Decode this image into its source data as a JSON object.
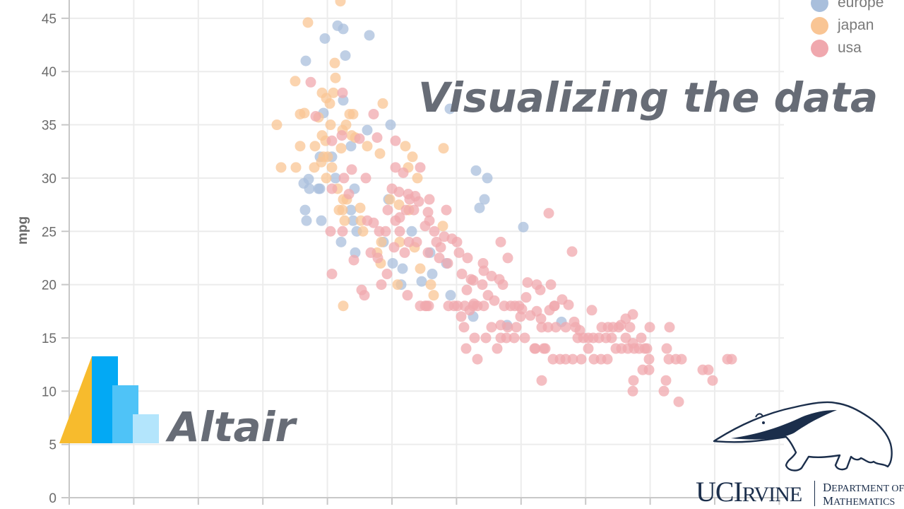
{
  "headline": "Visualizing the data",
  "altair": {
    "wordmark": "Altair",
    "logo_colors": {
      "triangle": "#f7bb2d",
      "bar1": "#03a9f4",
      "bar2": "#4fc3f7",
      "bar3": "#b3e5fc"
    }
  },
  "institution": {
    "wordmark_big_1": "UCI",
    "wordmark_small": "RVINE",
    "dept_line1_cap": "D",
    "dept_line1_rest": "EPARTMENT OF",
    "dept_line2_cap": "M",
    "dept_line2_rest": "ATHEMATICS",
    "color": "#1b2e4b"
  },
  "legend": {
    "items": [
      {
        "label": "europe",
        "color": "#a9bfdc"
      },
      {
        "label": "japan",
        "color": "#f9c594"
      },
      {
        "label": "usa",
        "color": "#f0a8ae"
      }
    ]
  },
  "chart_data": {
    "type": "scatter",
    "title": "",
    "xlabel": "",
    "ylabel": "mpg",
    "ylim": [
      0,
      45
    ],
    "yticks": [
      0,
      5,
      10,
      15,
      20,
      25,
      30,
      35,
      40,
      45
    ],
    "x_grid_count": 11,
    "grid": true,
    "legend_position": "top-right",
    "series": [
      {
        "name": "europe",
        "color": "#a9bfdc",
        "points": [
          [
            433,
            41
          ],
          [
            460,
            43.1
          ],
          [
            478,
            44.3
          ],
          [
            486,
            44
          ],
          [
            523,
            43.4
          ],
          [
            489,
            41.5
          ],
          [
            486,
            37.3
          ],
          [
            458,
            36.1
          ],
          [
            553,
            35
          ],
          [
            520,
            34.5
          ],
          [
            497,
            33
          ],
          [
            470,
            32
          ],
          [
            453,
            32
          ],
          [
            437,
            29.9
          ],
          [
            430,
            29.5
          ],
          [
            438,
            29
          ],
          [
            451,
            29
          ],
          [
            453,
            29
          ],
          [
            432,
            27
          ],
          [
            434,
            26
          ],
          [
            455,
            26
          ],
          [
            475,
            30
          ],
          [
            502,
            29
          ],
          [
            497,
            27
          ],
          [
            500,
            26
          ],
          [
            505,
            25
          ],
          [
            503,
            23
          ],
          [
            550,
            28
          ],
          [
            583,
            25
          ],
          [
            609,
            23
          ],
          [
            556,
            22
          ],
          [
            570,
            21.5
          ],
          [
            568,
            20
          ],
          [
            612,
            21
          ],
          [
            632,
            22
          ],
          [
            638,
            19
          ],
          [
            674,
            30.7
          ],
          [
            690,
            30
          ],
          [
            686,
            28
          ],
          [
            679,
            27.2
          ],
          [
            741,
            25.4
          ],
          [
            670,
            17
          ],
          [
            718,
            16.2
          ],
          [
            795,
            16.5
          ],
          [
            543,
            24
          ],
          [
            483,
            24
          ],
          [
            597,
            20.3
          ],
          [
            637,
            36.5
          ]
        ]
      },
      {
        "name": "japan",
        "color": "#f9c594",
        "points": [
          [
            436,
            44.6
          ],
          [
            482,
            46.6
          ],
          [
            474,
            40.8
          ],
          [
            418,
            39.1
          ],
          [
            475,
            39.4
          ],
          [
            456,
            38
          ],
          [
            462,
            37.5
          ],
          [
            467,
            37
          ],
          [
            472,
            38
          ],
          [
            542,
            37
          ],
          [
            392,
            35
          ],
          [
            425,
            36
          ],
          [
            431,
            36.1
          ],
          [
            451,
            35.7
          ],
          [
            468,
            35
          ],
          [
            495,
            36
          ],
          [
            500,
            36
          ],
          [
            485,
            34.5
          ],
          [
            490,
            35
          ],
          [
            498,
            34
          ],
          [
            503,
            33.8
          ],
          [
            425,
            33
          ],
          [
            446,
            33
          ],
          [
            456,
            34
          ],
          [
            461,
            33.5
          ],
          [
            464,
            32
          ],
          [
            483,
            32.8
          ],
          [
            520,
            33
          ],
          [
            538,
            32.3
          ],
          [
            398,
            31
          ],
          [
            419,
            31
          ],
          [
            445,
            31
          ],
          [
            455,
            31.5
          ],
          [
            458,
            32
          ],
          [
            462,
            30
          ],
          [
            470,
            31
          ],
          [
            478,
            29
          ],
          [
            486,
            28
          ],
          [
            491,
            28
          ],
          [
            485,
            27
          ],
          [
            480,
            27
          ],
          [
            488,
            26
          ],
          [
            510,
            27.2
          ],
          [
            511,
            26
          ],
          [
            514,
            25
          ],
          [
            574,
            33
          ],
          [
            584,
            32
          ],
          [
            578,
            31
          ],
          [
            591,
            30
          ],
          [
            628,
            32.8
          ],
          [
            552,
            28
          ],
          [
            565,
            27.5
          ],
          [
            579,
            27
          ],
          [
            627,
            25.5
          ],
          [
            540,
            24
          ],
          [
            534,
            23
          ],
          [
            539,
            22
          ],
          [
            566,
            24
          ],
          [
            587,
            23.5
          ],
          [
            595,
            21.5
          ],
          [
            610,
            20
          ],
          [
            614,
            19
          ],
          [
            486,
            18
          ],
          [
            563,
            20
          ]
        ]
      },
      {
        "name": "usa",
        "color": "#f0a8ae",
        "points": [
          [
            440,
            39
          ],
          [
            485,
            38
          ],
          [
            447,
            35.8
          ],
          [
            529,
            36
          ],
          [
            470,
            33.5
          ],
          [
            484,
            34
          ],
          [
            509,
            33.7
          ],
          [
            534,
            33.8
          ],
          [
            560,
            33.5
          ],
          [
            560,
            31
          ],
          [
            571,
            30.5
          ],
          [
            595,
            31
          ],
          [
            470,
            29
          ],
          [
            498,
            30.8
          ],
          [
            518,
            30
          ],
          [
            487,
            30
          ],
          [
            494,
            28.5
          ],
          [
            555,
            29
          ],
          [
            565,
            28.7
          ],
          [
            578,
            28.5
          ],
          [
            580,
            28
          ],
          [
            588,
            28.3
          ],
          [
            593,
            27.8
          ],
          [
            608,
            28
          ],
          [
            606,
            26.8
          ],
          [
            632,
            27
          ],
          [
            608,
            26
          ],
          [
            602,
            25.5
          ],
          [
            615,
            25
          ],
          [
            549,
            27
          ],
          [
            546,
            25
          ],
          [
            560,
            26
          ],
          [
            566,
            26.3
          ],
          [
            575,
            27
          ],
          [
            586,
            27
          ],
          [
            520,
            26
          ],
          [
            529,
            25.8
          ],
          [
            537,
            25
          ],
          [
            566,
            25
          ],
          [
            579,
            24
          ],
          [
            558,
            23.5
          ],
          [
            573,
            23
          ],
          [
            590,
            24
          ],
          [
            606,
            23
          ],
          [
            618,
            24
          ],
          [
            629,
            24.5
          ],
          [
            624,
            23.5
          ],
          [
            622,
            22.5
          ],
          [
            634,
            22
          ],
          [
            640,
            24.3
          ],
          [
            650,
            23
          ],
          [
            662,
            22.5
          ],
          [
            647,
            24
          ],
          [
            468,
            25
          ],
          [
            485,
            25
          ],
          [
            470,
            21
          ],
          [
            501,
            22.3
          ],
          [
            525,
            23
          ],
          [
            535,
            22.5
          ],
          [
            548,
            21
          ],
          [
            540,
            20
          ],
          [
            516,
            19
          ],
          [
            512,
            19.5
          ],
          [
            577,
            19
          ],
          [
            602,
            18
          ],
          [
            607,
            18
          ],
          [
            635,
            18
          ],
          [
            643,
            18
          ],
          [
            648,
            18
          ],
          [
            654,
            21
          ],
          [
            661,
            19.5
          ],
          [
            667,
            20.5
          ],
          [
            684,
            22
          ],
          [
            685,
            21.3
          ],
          [
            709,
            24
          ],
          [
            719,
            22.5
          ],
          [
            696,
            20.8
          ],
          [
            707,
            20.5
          ],
          [
            712,
            20
          ],
          [
            683,
            20
          ],
          [
            691,
            19
          ],
          [
            700,
            18.5
          ],
          [
            671,
            18.2
          ],
          [
            685,
            18
          ],
          [
            714,
            18
          ],
          [
            723,
            18
          ],
          [
            729,
            18
          ],
          [
            735,
            18
          ],
          [
            739,
            17.7
          ],
          [
            745,
            18.8
          ],
          [
            747,
            20.2
          ],
          [
            760,
            20
          ],
          [
            765,
            19.5
          ],
          [
            731,
            16
          ],
          [
            737,
            17
          ],
          [
            751,
            17.1
          ],
          [
            760,
            17.5
          ],
          [
            766,
            16.8
          ],
          [
            778,
            17.6
          ],
          [
            785,
            18
          ],
          [
            796,
            18.6
          ],
          [
            767,
            16
          ],
          [
            776,
            16
          ],
          [
            787,
            16
          ],
          [
            801,
            16
          ],
          [
            813,
            16.5
          ],
          [
            821,
            15.7
          ],
          [
            838,
            17.6
          ],
          [
            852,
            16
          ],
          [
            861,
            16
          ],
          [
            868,
            16
          ],
          [
            876,
            16
          ],
          [
            892,
            16
          ],
          [
            896,
            17.2
          ],
          [
            920,
            16
          ],
          [
            886,
            16.8
          ],
          [
            879,
            16.2
          ],
          [
            886,
            15
          ],
          [
            896,
            14.5
          ],
          [
            908,
            15
          ],
          [
            916,
            14
          ],
          [
            919,
            13
          ],
          [
            860,
            13
          ],
          [
            851,
            13
          ],
          [
            841,
            13
          ],
          [
            833,
            14
          ],
          [
            823,
            13
          ],
          [
            811,
            13
          ],
          [
            801,
            13
          ],
          [
            793,
            13
          ],
          [
            783,
            13
          ],
          [
            772,
            14
          ],
          [
            758,
            14
          ],
          [
            743,
            15
          ],
          [
            728,
            15
          ],
          [
            717,
            15
          ],
          [
            709,
            15
          ],
          [
            704,
            14
          ],
          [
            688,
            15
          ],
          [
            672,
            15
          ],
          [
            660,
            14
          ],
          [
            676,
            13
          ],
          [
            696,
            16
          ],
          [
            709,
            16.2
          ],
          [
            653,
            17
          ],
          [
            657,
            16
          ],
          [
            665,
            17.6
          ],
          [
            670,
            20.4
          ],
          [
            670,
            18
          ],
          [
            780,
            20
          ],
          [
            785,
            18
          ],
          [
            805,
            18.1
          ],
          [
            815,
            16
          ],
          [
            818,
            15
          ],
          [
            826,
            15
          ],
          [
            833,
            15
          ],
          [
            840,
            15
          ],
          [
            848,
            15
          ],
          [
            858,
            15
          ],
          [
            866,
            15
          ],
          [
            872,
            14
          ],
          [
            880,
            14
          ],
          [
            889,
            14
          ],
          [
            898,
            14
          ],
          [
            905,
            14
          ],
          [
            913,
            14
          ],
          [
            919,
            12
          ],
          [
            910,
            12
          ],
          [
            948,
            16
          ],
          [
            944,
            14
          ],
          [
            947,
            13
          ],
          [
            957,
            13
          ],
          [
            965,
            13
          ],
          [
            1036,
            13
          ],
          [
            995,
            12
          ],
          [
            1003,
            12
          ],
          [
            1009,
            11
          ],
          [
            1030,
            13
          ],
          [
            940,
            10
          ],
          [
            897,
            11
          ],
          [
            896,
            10
          ],
          [
            961,
            9
          ],
          [
            943,
            11
          ],
          [
            767,
            11
          ],
          [
            777,
            26.7
          ],
          [
            810,
            23.1
          ],
          [
            595,
            18
          ],
          [
            604,
            18
          ],
          [
            658,
            18
          ],
          [
            676,
            18
          ],
          [
            719,
            16
          ],
          [
            757,
            14
          ],
          [
            770,
            14
          ]
        ]
      }
    ]
  }
}
